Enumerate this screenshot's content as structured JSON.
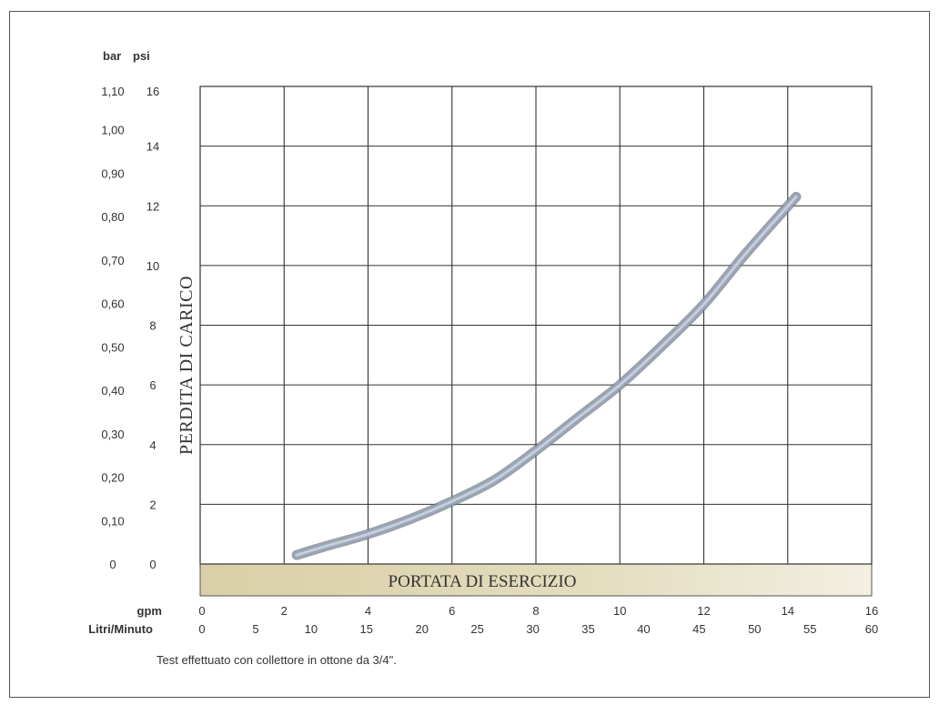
{
  "chart_data": {
    "type": "line",
    "title": "",
    "ylabel": "PERDITA DI CARICO",
    "xlabel": "PORTATA DI ESERCIZIO",
    "y_units": {
      "bar": "bar",
      "psi": "psi"
    },
    "y_ticks_bar": [
      "1,10",
      "1,00",
      "0,90",
      "0,80",
      "0,70",
      "0,60",
      "0,50",
      "0,40",
      "0,30",
      "0,20",
      "0,10",
      "0"
    ],
    "y_ticks_psi": [
      "16",
      "14",
      "12",
      "10",
      "8",
      "6",
      "4",
      "2",
      "0"
    ],
    "x_unit_gpm": "gpm",
    "x_unit_lpm": "Litri/Minuto",
    "x_ticks_gpm": [
      "0",
      "2",
      "4",
      "6",
      "8",
      "10",
      "12",
      "14",
      "16"
    ],
    "x_ticks_lpm": [
      "0",
      "5",
      "10",
      "15",
      "20",
      "25",
      "30",
      "35",
      "40",
      "45",
      "50",
      "55",
      "60"
    ],
    "xlim_gpm": [
      0,
      16
    ],
    "ylim_psi": [
      0,
      16
    ],
    "grid": true,
    "series": [
      {
        "x_gpm": [
          2.3,
          3,
          4,
          5,
          6,
          7,
          8,
          9,
          10,
          11,
          12,
          13,
          14.2
        ],
        "y_psi": [
          0.3,
          0.6,
          1.0,
          1.5,
          2.1,
          2.8,
          3.8,
          4.9,
          6.0,
          7.3,
          8.7,
          10.4,
          12.3
        ],
        "color": "#9aa6b8"
      }
    ],
    "footnote": "Test effettuato con collettore in ottone da 3/4\"."
  }
}
